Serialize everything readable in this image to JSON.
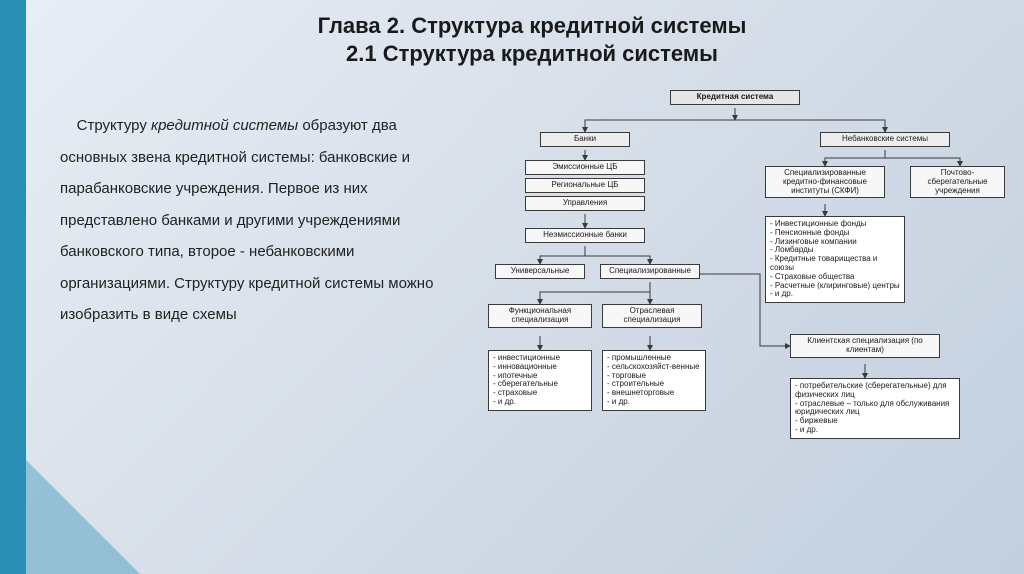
{
  "title": {
    "line1": "Глава 2. Структура кредитной системы",
    "line2": "2.1 Структура кредитной системы"
  },
  "paragraph": "Структуру кредитной системы образуют два основных звена кредитной системы: банковские и парабанковские учреждения. Первое из них представлено банками и другими учреждениями банковского типа, второе - небанковскими организациями. Структуру кредитной системы можно изобразить в виде схемы",
  "italic_span": "кредитной системы",
  "colors": {
    "accent": "#2a8fb5",
    "bg_grad_a": "#e8eef5",
    "bg_grad_b": "#c2cfde",
    "node_border": "#3a3a3a",
    "node_head_bg": "#e6e6e6",
    "node_sub_bg": "#ededed",
    "node_cell_bg": "#f7f7f7"
  },
  "diagram": {
    "type": "tree",
    "root": "Кредитная система",
    "banks": "Банки",
    "nonbank": "Небанковские системы",
    "bank_rows": [
      "Эмиссионные ЦБ",
      "Региональные ЦБ",
      "Управления"
    ],
    "skfi": "Специализированные кредитно-финансовые институты (СКФИ)",
    "postal": "Почтово-сберегательные учреждения",
    "nonemission": "Неэмиссионные банки",
    "univ": "Универсальные",
    "spec": "Специализированные",
    "func_spec": "Функциональная специализация",
    "sector_spec": "Отраслевая специализация",
    "client_spec": "Клиентская специализация (по клиентам)",
    "skfi_list": [
      "- Инвестиционные фонды",
      "- Пенсионные фонды",
      "- Лизинговые компании",
      "- Ломбарды",
      "- Кредитные товарищества и союзы",
      "- Страховые общества",
      "- Расчетные (клиринговые) центры",
      "- и др."
    ],
    "func_list": [
      "- инвестиционные",
      "- инновационные",
      "- ипотечные",
      "- сберегательные",
      "- страховые",
      "- и др."
    ],
    "sector_list": [
      "- промышленные",
      "- сельскохозяйст-венные",
      "- торговые",
      "- строительные",
      "- внешнеторговые",
      "- и др."
    ],
    "client_list": [
      "- потребительские (сберегательные) для физических лиц",
      "- отраслевые – только для обслуживания юридических лиц",
      "- биржевые",
      "- и др."
    ]
  }
}
